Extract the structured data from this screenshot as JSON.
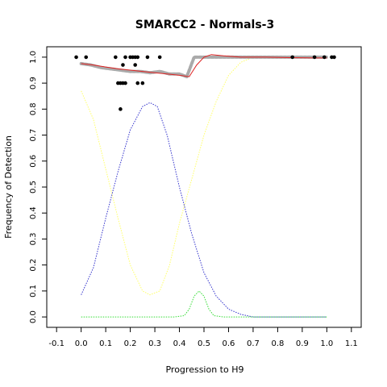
{
  "chart_data": {
    "type": "scatter",
    "title": "SMARCC2 - Normals-3",
    "xlabel": "Progression to H9",
    "ylabel": "Frequency of Detection",
    "xlim": [
      -0.14,
      1.14
    ],
    "ylim": [
      -0.04,
      1.04
    ],
    "x_ticks": [
      -0.1,
      0.0,
      0.1,
      0.2,
      0.3,
      0.4,
      0.5,
      0.6,
      0.7,
      0.8,
      0.9,
      1.0,
      1.1
    ],
    "x_tick_labels": [
      "-0.1",
      "0.0",
      "0.1",
      "0.2",
      "0.3",
      "0.4",
      "0.5",
      "0.6",
      "0.7",
      "0.8",
      "0.9",
      "1.0",
      "1.1"
    ],
    "y_ticks": [
      0.0,
      0.1,
      0.2,
      0.3,
      0.4,
      0.5,
      0.6,
      0.7,
      0.8,
      0.9,
      1.0
    ],
    "y_tick_labels": [
      "0.0",
      "0.1",
      "0.2",
      "0.3",
      "0.4",
      "0.5",
      "0.6",
      "0.7",
      "0.8",
      "0.9",
      "1.0"
    ],
    "grid": false,
    "colors": {
      "points": "#000000",
      "smoothed": "#aaaaaa",
      "fit": "#dd2222",
      "yellow": "#ffff66",
      "blue": "#3333cc",
      "green": "#33dd33"
    },
    "points": [
      {
        "x": -0.02,
        "y": 1.0
      },
      {
        "x": 0.02,
        "y": 1.0
      },
      {
        "x": 0.14,
        "y": 1.0
      },
      {
        "x": 0.18,
        "y": 1.0
      },
      {
        "x": 0.2,
        "y": 1.0
      },
      {
        "x": 0.21,
        "y": 1.0
      },
      {
        "x": 0.22,
        "y": 1.0
      },
      {
        "x": 0.23,
        "y": 1.0
      },
      {
        "x": 0.27,
        "y": 1.0
      },
      {
        "x": 0.32,
        "y": 1.0
      },
      {
        "x": 0.17,
        "y": 0.97
      },
      {
        "x": 0.22,
        "y": 0.97
      },
      {
        "x": 0.15,
        "y": 0.9
      },
      {
        "x": 0.16,
        "y": 0.9
      },
      {
        "x": 0.17,
        "y": 0.9
      },
      {
        "x": 0.18,
        "y": 0.9
      },
      {
        "x": 0.23,
        "y": 0.9
      },
      {
        "x": 0.25,
        "y": 0.9
      },
      {
        "x": 0.16,
        "y": 0.8
      },
      {
        "x": 0.86,
        "y": 1.0
      },
      {
        "x": 0.95,
        "y": 1.0
      },
      {
        "x": 0.99,
        "y": 1.0
      },
      {
        "x": 1.02,
        "y": 1.0
      },
      {
        "x": 1.03,
        "y": 1.0
      }
    ],
    "smoothed": [
      {
        "x": 0.0,
        "y": 0.975
      },
      {
        "x": 0.04,
        "y": 0.97
      },
      {
        "x": 0.08,
        "y": 0.96
      },
      {
        "x": 0.12,
        "y": 0.955
      },
      {
        "x": 0.16,
        "y": 0.95
      },
      {
        "x": 0.2,
        "y": 0.945
      },
      {
        "x": 0.24,
        "y": 0.945
      },
      {
        "x": 0.28,
        "y": 0.94
      },
      {
        "x": 0.32,
        "y": 0.945
      },
      {
        "x": 0.36,
        "y": 0.935
      },
      {
        "x": 0.4,
        "y": 0.935
      },
      {
        "x": 0.43,
        "y": 0.925
      },
      {
        "x": 0.46,
        "y": 1.0
      },
      {
        "x": 0.55,
        "y": 1.0
      },
      {
        "x": 0.65,
        "y": 1.0
      },
      {
        "x": 0.75,
        "y": 1.0
      },
      {
        "x": 0.85,
        "y": 1.0
      },
      {
        "x": 0.95,
        "y": 1.0
      },
      {
        "x": 1.0,
        "y": 1.0
      }
    ],
    "fit_line": [
      {
        "x": 0.0,
        "y": 0.975
      },
      {
        "x": 0.05,
        "y": 0.97
      },
      {
        "x": 0.1,
        "y": 0.962
      },
      {
        "x": 0.15,
        "y": 0.955
      },
      {
        "x": 0.2,
        "y": 0.95
      },
      {
        "x": 0.25,
        "y": 0.945
      },
      {
        "x": 0.3,
        "y": 0.94
      },
      {
        "x": 0.35,
        "y": 0.935
      },
      {
        "x": 0.4,
        "y": 0.93
      },
      {
        "x": 0.44,
        "y": 0.925
      },
      {
        "x": 0.47,
        "y": 0.97
      },
      {
        "x": 0.5,
        "y": 1.0
      },
      {
        "x": 0.53,
        "y": 1.01
      },
      {
        "x": 0.58,
        "y": 1.005
      },
      {
        "x": 0.65,
        "y": 1.0
      },
      {
        "x": 0.75,
        "y": 1.0
      },
      {
        "x": 0.85,
        "y": 0.998
      },
      {
        "x": 0.95,
        "y": 0.997
      },
      {
        "x": 1.0,
        "y": 0.997
      }
    ],
    "yellow_curve": [
      {
        "x": 0.0,
        "y": 0.87
      },
      {
        "x": 0.05,
        "y": 0.76
      },
      {
        "x": 0.1,
        "y": 0.57
      },
      {
        "x": 0.15,
        "y": 0.38
      },
      {
        "x": 0.2,
        "y": 0.2
      },
      {
        "x": 0.25,
        "y": 0.1
      },
      {
        "x": 0.28,
        "y": 0.085
      },
      {
        "x": 0.32,
        "y": 0.1
      },
      {
        "x": 0.36,
        "y": 0.2
      },
      {
        "x": 0.4,
        "y": 0.36
      },
      {
        "x": 0.45,
        "y": 0.53
      },
      {
        "x": 0.5,
        "y": 0.7
      },
      {
        "x": 0.55,
        "y": 0.83
      },
      {
        "x": 0.6,
        "y": 0.93
      },
      {
        "x": 0.65,
        "y": 0.98
      },
      {
        "x": 0.7,
        "y": 1.0
      },
      {
        "x": 0.8,
        "y": 1.0
      },
      {
        "x": 0.9,
        "y": 1.0
      },
      {
        "x": 1.0,
        "y": 1.0
      }
    ],
    "blue_curve": [
      {
        "x": 0.0,
        "y": 0.085
      },
      {
        "x": 0.05,
        "y": 0.19
      },
      {
        "x": 0.1,
        "y": 0.38
      },
      {
        "x": 0.15,
        "y": 0.56
      },
      {
        "x": 0.2,
        "y": 0.72
      },
      {
        "x": 0.25,
        "y": 0.81
      },
      {
        "x": 0.28,
        "y": 0.825
      },
      {
        "x": 0.31,
        "y": 0.81
      },
      {
        "x": 0.35,
        "y": 0.7
      },
      {
        "x": 0.4,
        "y": 0.5
      },
      {
        "x": 0.45,
        "y": 0.32
      },
      {
        "x": 0.5,
        "y": 0.17
      },
      {
        "x": 0.55,
        "y": 0.08
      },
      {
        "x": 0.6,
        "y": 0.03
      },
      {
        "x": 0.65,
        "y": 0.01
      },
      {
        "x": 0.7,
        "y": 0.0
      },
      {
        "x": 0.8,
        "y": 0.0
      },
      {
        "x": 0.9,
        "y": 0.0
      },
      {
        "x": 1.0,
        "y": 0.0
      }
    ],
    "green_curve": [
      {
        "x": 0.0,
        "y": 0.0
      },
      {
        "x": 0.2,
        "y": 0.0
      },
      {
        "x": 0.38,
        "y": 0.0
      },
      {
        "x": 0.42,
        "y": 0.005
      },
      {
        "x": 0.44,
        "y": 0.03
      },
      {
        "x": 0.46,
        "y": 0.08
      },
      {
        "x": 0.48,
        "y": 0.1
      },
      {
        "x": 0.5,
        "y": 0.08
      },
      {
        "x": 0.52,
        "y": 0.03
      },
      {
        "x": 0.54,
        "y": 0.005
      },
      {
        "x": 0.58,
        "y": 0.0
      },
      {
        "x": 0.7,
        "y": 0.0
      },
      {
        "x": 0.85,
        "y": 0.0
      },
      {
        "x": 1.0,
        "y": 0.0
      }
    ]
  }
}
